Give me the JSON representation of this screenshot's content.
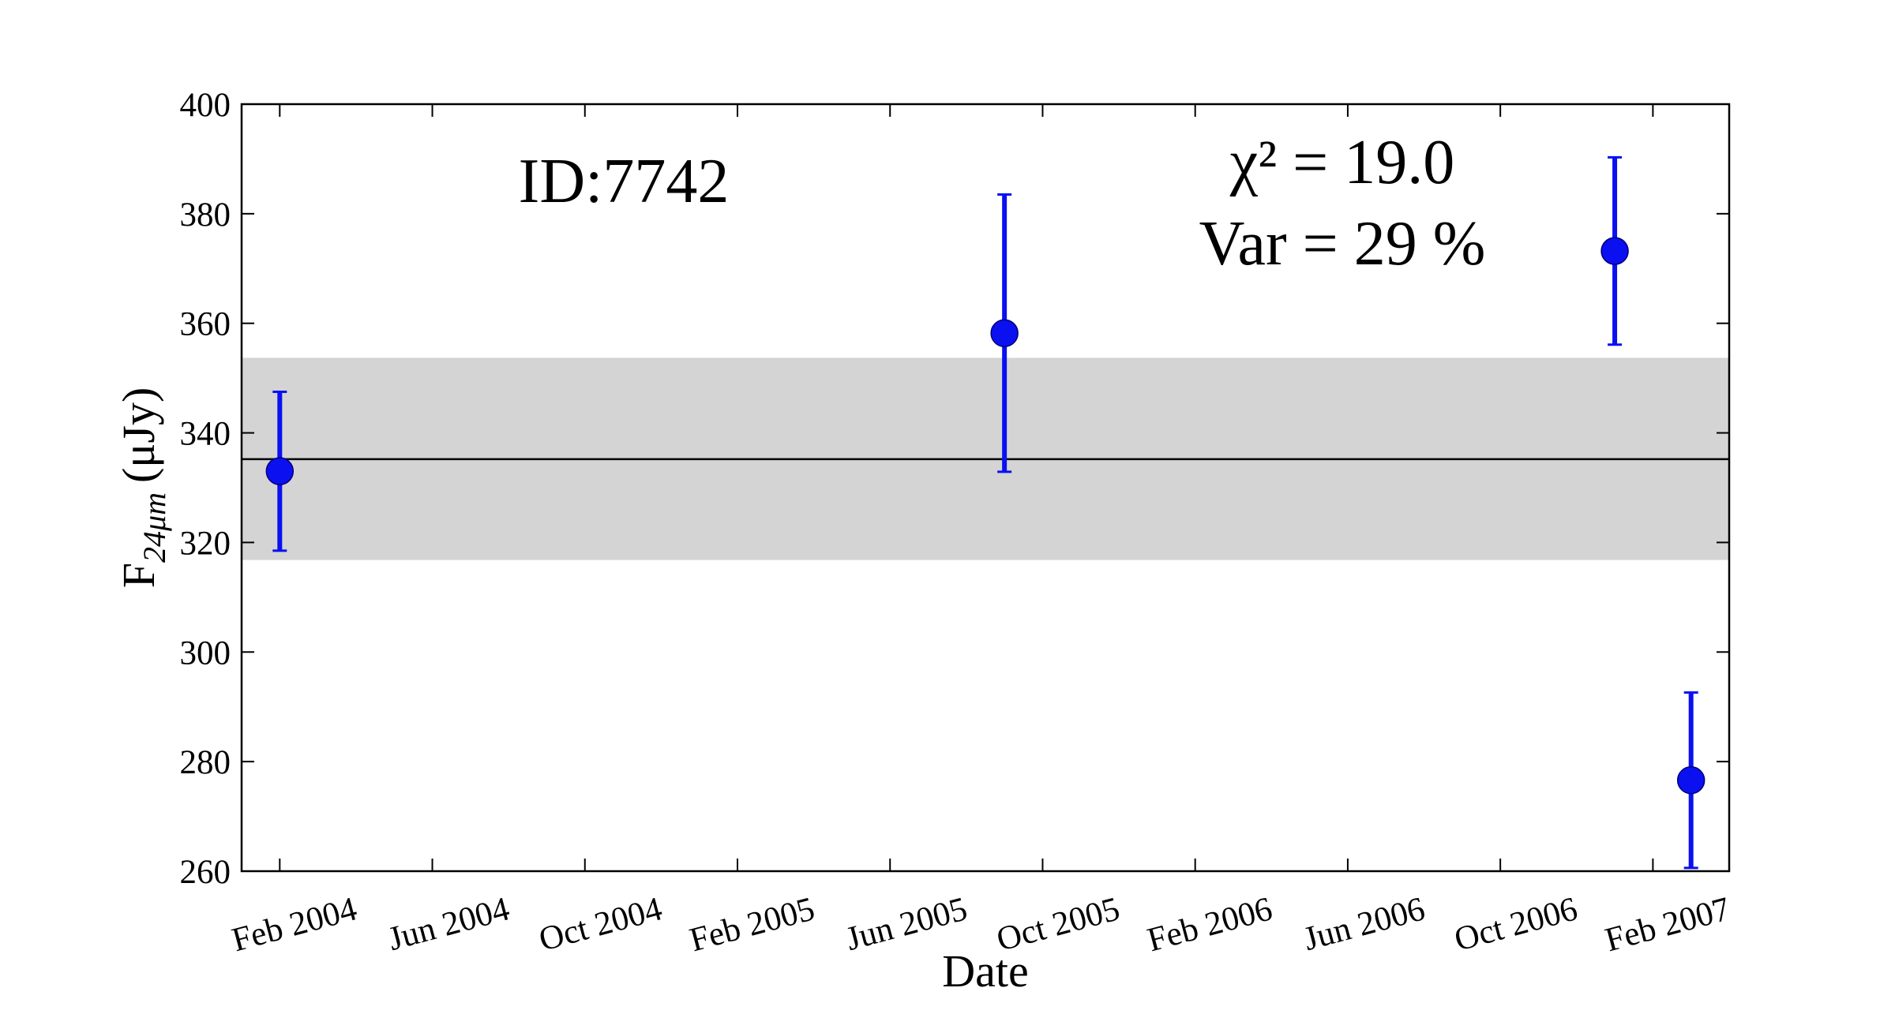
{
  "chart_data": {
    "type": "errorbar",
    "annotations": {
      "id": "ID:7742",
      "chi2": "χ² = 19.0",
      "var": "Var = 29 %"
    },
    "xlabel": "Date",
    "ylabel": {
      "symbol": "F",
      "subscript": "24μm",
      "unit": "(μJy)"
    },
    "x": [
      "2004-02",
      "2005-09",
      "2007-01",
      "2007-03"
    ],
    "series": [
      {
        "color": "#0a10f0",
        "values": [
          333,
          358.2,
          373.2,
          276.6
        ],
        "errors": [
          14.5,
          25.3,
          17.1,
          16
        ]
      }
    ],
    "mean": {
      "value": 335.2,
      "color": "#000000"
    },
    "band": {
      "range": [
        316.8,
        353.7
      ],
      "color": "#d4d4d4"
    },
    "xlim": [
      "2004-01",
      "2007-04"
    ],
    "xticks": [
      {
        "value": "2004-02",
        "label": "Feb 2004"
      },
      {
        "value": "2004-06",
        "label": "Jun 2004"
      },
      {
        "value": "2004-10",
        "label": "Oct 2004"
      },
      {
        "value": "2005-02",
        "label": "Feb 2005"
      },
      {
        "value": "2005-06",
        "label": "Jun 2005"
      },
      {
        "value": "2005-10",
        "label": "Oct 2005"
      },
      {
        "value": "2006-02",
        "label": "Feb 2006"
      },
      {
        "value": "2006-06",
        "label": "Jun 2006"
      },
      {
        "value": "2006-10",
        "label": "Oct 2006"
      },
      {
        "value": "2007-02",
        "label": "Feb 2007"
      }
    ],
    "ylim": [
      260,
      400
    ],
    "yticks": [
      260,
      280,
      300,
      320,
      340,
      360,
      380,
      400
    ]
  }
}
